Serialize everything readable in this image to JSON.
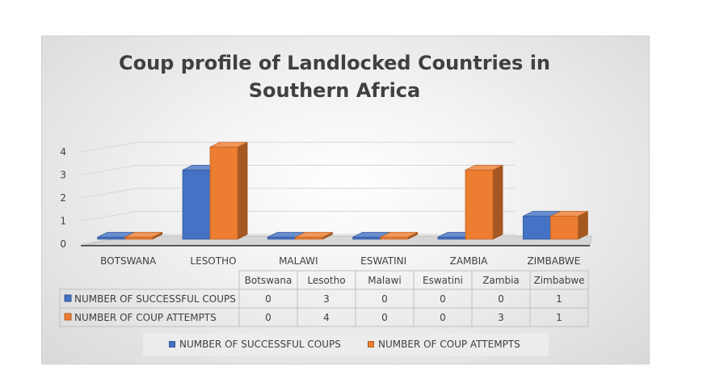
{
  "chart_data": {
    "type": "bar",
    "title": "Coup profile of Landlocked Countries in Southern Africa",
    "title_lines": [
      "Coup profile of Landlocked Countries in",
      "Southern Africa"
    ],
    "categories": [
      "BOTSWANA",
      "LESOTHO",
      "MALAWI",
      "ESWATINI",
      "ZAMBIA",
      "ZIMBABWE"
    ],
    "table_categories": [
      "Botswana",
      "Lesotho",
      "Malawi",
      "Eswatini",
      "Zambia",
      "Zimbabwe"
    ],
    "series": [
      {
        "name": "NUMBER OF SUCCESSFUL COUPS",
        "values": [
          0,
          3,
          0,
          0,
          0,
          1
        ],
        "color": "#4472C4"
      },
      {
        "name": "NUMBER OF COUP ATTEMPTS",
        "values": [
          0,
          4,
          0,
          0,
          3,
          1
        ],
        "color": "#ED7D31"
      }
    ],
    "y_ticks": [
      0,
      1,
      2,
      3,
      4
    ],
    "ylim": [
      0,
      4
    ],
    "xlabel": "",
    "ylabel": "",
    "grid": true,
    "legend_position": "bottom",
    "data_table": true
  }
}
